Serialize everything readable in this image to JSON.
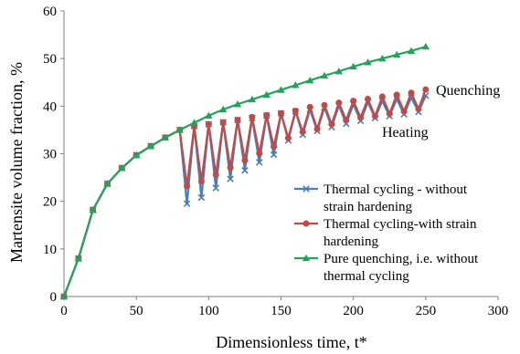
{
  "chart_data": {
    "type": "line",
    "title": "",
    "xlabel": "Dimensionless time, t*",
    "ylabel": "Martensite volume fraction, %",
    "xlim": [
      0,
      300
    ],
    "ylim": [
      0,
      60
    ],
    "xticks": [
      0,
      50,
      100,
      150,
      200,
      250,
      300
    ],
    "yticks": [
      0,
      10,
      20,
      30,
      40,
      50,
      60
    ],
    "grid": false,
    "legend_position": "bottom-right",
    "annotations": [
      {
        "text": "Quenching",
        "x": 256,
        "y": 43.8
      },
      {
        "text": "Heating",
        "x": 235,
        "y": 34.5
      }
    ],
    "series": [
      {
        "name": "Thermal cycling - without strain hardening",
        "legend_lines": [
          "Thermal cycling - without",
          "strain hardening"
        ],
        "color": "#4a7ebb",
        "marker": "x",
        "x": [
          0,
          10,
          20,
          30,
          40,
          50,
          60,
          70,
          80,
          85,
          90,
          95,
          100,
          105,
          110,
          115,
          120,
          125,
          130,
          135,
          140,
          145,
          150,
          155,
          160,
          165,
          170,
          175,
          180,
          185,
          190,
          195,
          200,
          205,
          210,
          215,
          220,
          225,
          230,
          235,
          240,
          245,
          250
        ],
        "y": [
          0,
          8,
          18.2,
          23.7,
          27,
          29.7,
          31.6,
          33.4,
          35,
          19.5,
          35.8,
          20.8,
          36.2,
          22.8,
          36.6,
          24.7,
          37.1,
          26.5,
          37.5,
          28.2,
          38,
          29.8,
          38.5,
          32.8,
          38.9,
          34,
          39.3,
          34.8,
          39.7,
          35.6,
          40.1,
          36.3,
          40.4,
          36.9,
          40.8,
          37.5,
          41.1,
          37.9,
          41.5,
          38.3,
          41.8,
          38.8,
          42.2
        ]
      },
      {
        "name": "Thermal cycling-with strain hardening",
        "legend_lines": [
          "Thermal cycling-with strain",
          "hardening"
        ],
        "color": "#be4b48",
        "marker": "circle",
        "x": [
          0,
          10,
          20,
          30,
          40,
          50,
          60,
          70,
          80,
          85,
          90,
          95,
          100,
          105,
          110,
          115,
          120,
          125,
          130,
          135,
          140,
          145,
          150,
          155,
          160,
          165,
          170,
          175,
          180,
          185,
          190,
          195,
          200,
          205,
          210,
          215,
          220,
          225,
          230,
          235,
          240,
          245,
          250
        ],
        "y": [
          0,
          8,
          18.2,
          23.7,
          27,
          29.7,
          31.6,
          33.4,
          35,
          23.2,
          35.8,
          24.2,
          36.2,
          25.6,
          36.6,
          27.1,
          37.1,
          28.6,
          37.7,
          30.1,
          38.1,
          31.5,
          38.5,
          33.3,
          39,
          34.6,
          39.8,
          35.2,
          40.2,
          36.2,
          40.7,
          37.1,
          41.1,
          37.6,
          41.5,
          37.9,
          42,
          38.4,
          42.4,
          38.9,
          42.8,
          39.4,
          43.5
        ]
      },
      {
        "name": "Pure quenching, i.e. without thermal cycling",
        "legend_lines": [
          "Pure quenching, i.e. without",
          "thermal cycling"
        ],
        "color": "#23a35a",
        "marker": "triangle",
        "x": [
          0,
          10,
          20,
          30,
          40,
          50,
          60,
          70,
          80,
          90,
          100,
          110,
          120,
          130,
          140,
          150,
          160,
          170,
          180,
          190,
          200,
          210,
          220,
          230,
          240,
          250
        ],
        "y": [
          0,
          8,
          18.2,
          23.7,
          27,
          29.7,
          31.6,
          33.4,
          35,
          36.5,
          38,
          39.3,
          40.4,
          41.4,
          42.4,
          43.4,
          44.4,
          45.4,
          46.4,
          47.3,
          48.3,
          49.2,
          50,
          50.8,
          51.6,
          52.5
        ]
      }
    ]
  }
}
